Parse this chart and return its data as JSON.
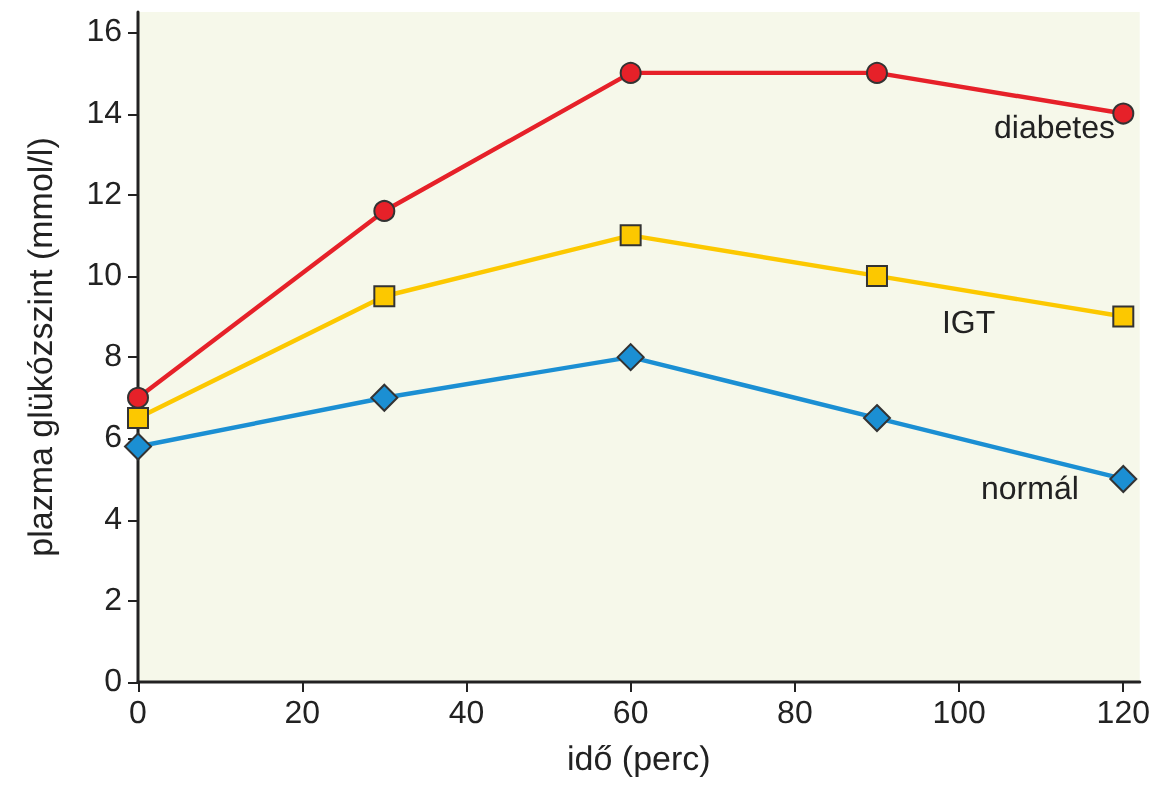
{
  "chart_data": {
    "type": "line",
    "xlabel": "idő (perc)",
    "ylabel": "plazma glükózszint (mmol/l)",
    "x": [
      0,
      30,
      60,
      90,
      120
    ],
    "series": [
      {
        "name": "diabetes",
        "color": "#e62129",
        "marker": "circle",
        "values": [
          7,
          11.6,
          15,
          15,
          14
        ]
      },
      {
        "name": "IGT",
        "color": "#fcc800",
        "marker": "square",
        "values": [
          6.5,
          9.5,
          11,
          10,
          9
        ]
      },
      {
        "name": "normál",
        "color": "#1b8fd3",
        "marker": "diamond",
        "values": [
          5.8,
          7,
          8,
          6.5,
          5
        ]
      }
    ],
    "xlim": [
      0,
      122
    ],
    "xticks": [
      0,
      20,
      40,
      60,
      80,
      100,
      120
    ],
    "ylim": [
      0,
      16.5
    ],
    "yticks": [
      0,
      2,
      4,
      6,
      8,
      10,
      12,
      14,
      16
    ],
    "grid": false,
    "legend": false
  }
}
